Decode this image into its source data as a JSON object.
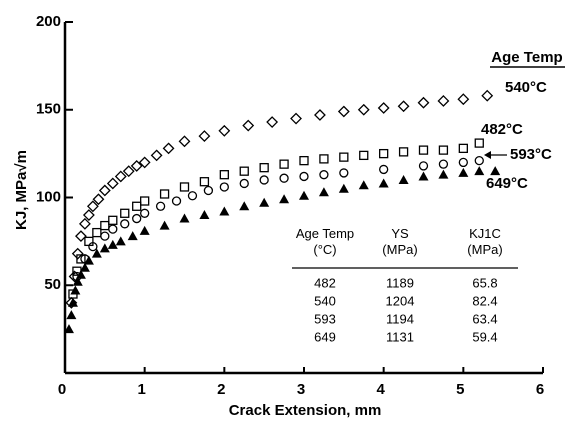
{
  "chart_data": {
    "type": "scatter",
    "xlabel": "Crack Extension, mm",
    "ylabel": "KJ, MPa√m",
    "legend_title": "Age Temp",
    "xlim": [
      0,
      6
    ],
    "xticks": [
      0,
      1,
      2,
      3,
      4,
      5,
      6
    ],
    "ylim": [
      0,
      200
    ],
    "yticks": [
      50,
      100,
      150,
      200
    ],
    "series": [
      {
        "name": "540°C",
        "marker": "diamond",
        "color": "#000000",
        "x": [
          0.08,
          0.12,
          0.16,
          0.2,
          0.25,
          0.3,
          0.35,
          0.42,
          0.5,
          0.6,
          0.7,
          0.8,
          0.9,
          1.0,
          1.15,
          1.3,
          1.5,
          1.75,
          2.0,
          2.3,
          2.6,
          2.9,
          3.2,
          3.5,
          3.75,
          4.0,
          4.25,
          4.5,
          4.75,
          5.0,
          5.3
        ],
        "y": [
          40,
          55,
          68,
          78,
          85,
          90,
          95,
          99,
          104,
          108,
          112,
          115,
          118,
          120,
          124,
          128,
          132,
          135,
          138,
          141,
          143,
          145,
          147,
          149,
          150,
          151,
          152,
          154,
          155,
          156,
          158
        ]
      },
      {
        "name": "482°C",
        "marker": "square",
        "color": "#000000",
        "x": [
          0.1,
          0.15,
          0.2,
          0.3,
          0.4,
          0.5,
          0.6,
          0.75,
          0.9,
          1.0,
          1.25,
          1.5,
          1.75,
          2.0,
          2.25,
          2.5,
          2.75,
          3.0,
          3.25,
          3.5,
          3.75,
          4.0,
          4.25,
          4.5,
          4.75,
          5.0,
          5.2
        ],
        "y": [
          45,
          58,
          65,
          75,
          80,
          84,
          87,
          91,
          95,
          98,
          102,
          106,
          109,
          113,
          115,
          117,
          119,
          121,
          122,
          123,
          124,
          125,
          126,
          127,
          127,
          128,
          131
        ]
      },
      {
        "name": "593°C",
        "marker": "circle",
        "color": "#000000",
        "x": [
          0.15,
          0.25,
          0.35,
          0.5,
          0.6,
          0.75,
          0.9,
          1.0,
          1.2,
          1.4,
          1.6,
          1.8,
          2.0,
          2.25,
          2.5,
          2.75,
          3.0,
          3.25,
          3.5,
          4.0,
          4.5,
          4.75,
          5.0,
          5.2
        ],
        "y": [
          55,
          65,
          72,
          78,
          82,
          85,
          88,
          91,
          95,
          98,
          101,
          104,
          106,
          108,
          110,
          111,
          112,
          113,
          114,
          116,
          118,
          119,
          120,
          121
        ]
      },
      {
        "name": "649°C",
        "marker": "triangle",
        "color": "#000000",
        "x": [
          0.05,
          0.08,
          0.1,
          0.13,
          0.16,
          0.2,
          0.25,
          0.3,
          0.4,
          0.5,
          0.6,
          0.7,
          0.85,
          1.0,
          1.25,
          1.5,
          1.75,
          2.0,
          2.25,
          2.5,
          2.75,
          3.0,
          3.25,
          3.5,
          3.75,
          4.0,
          4.25,
          4.5,
          4.75,
          5.0,
          5.2,
          5.4
        ],
        "y": [
          25,
          33,
          40,
          47,
          52,
          56,
          60,
          64,
          68,
          71,
          73,
          75,
          78,
          81,
          84,
          88,
          90,
          92,
          95,
          97,
          99,
          101,
          103,
          105,
          107,
          108,
          110,
          112,
          113,
          114,
          115,
          115
        ]
      }
    ],
    "table": {
      "columns": [
        "Age Temp\n(°C)",
        "YS\n(MPa)",
        "KJ1C\n(MPa)"
      ],
      "rows": [
        [
          "482",
          "1189",
          "65.8"
        ],
        [
          "540",
          "1204",
          "82.4"
        ],
        [
          "593",
          "1194",
          "63.4"
        ],
        [
          "649",
          "1131",
          "59.4"
        ]
      ]
    }
  }
}
